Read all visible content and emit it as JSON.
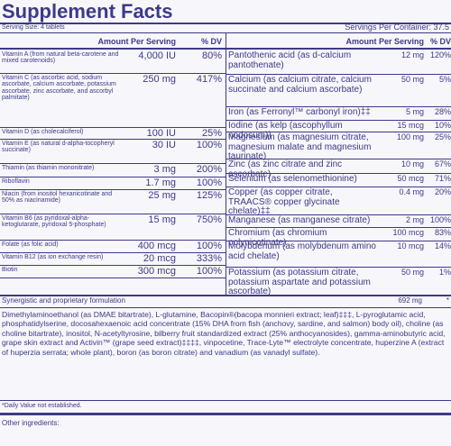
{
  "header": {
    "title": "Supplement Facts",
    "serving_size": "Serving Size: 4 tablets",
    "servings_per_container": "Servings Per Container: 37.5"
  },
  "left_table": {
    "columns": [
      "Amount Per Serving",
      "% DV"
    ],
    "rows": [
      [
        "Vitamin A (from natural beta-carotene and mixed carotenoids)",
        "4,000 IU",
        "80%"
      ],
      [
        "Vitamin C (as ascorbic acid, sodium ascorbate, calcium ascorbate, potassium ascorbate, zinc ascorbate, and ascorbyl palmitate)",
        "250 mg",
        "417%"
      ],
      [
        "Vitamin D (as cholecalciferol)",
        "100 IU",
        "25%"
      ],
      [
        "Vitamin E (as natural d-alpha-tocopheryl succinate)",
        "30 IU",
        "100%"
      ],
      [
        "Thiamin (as thiamin mononitrate)",
        "3 mg",
        "200%"
      ],
      [
        "Riboflavin",
        "1.7 mg",
        "100%"
      ],
      [
        "Niacin (from inositol hexanicotinate and 50% as niacinamide)",
        "25 mg",
        "125%"
      ],
      [
        "Vitamin B6 (as pyridoxal-alpha-ketoglutarate, pyridoxal 5-phosphate)",
        "15 mg",
        "750%"
      ],
      [
        "Folate (as folic acid)",
        "400 mcg",
        "100%"
      ],
      [
        "Vitamin B12 (as ion exchange resin)",
        "20 mcg",
        "333%"
      ],
      [
        "Biotin",
        "300 mcg",
        "100%"
      ]
    ]
  },
  "right_table": {
    "columns": [
      "Amount Per Serving",
      "% DV"
    ],
    "rows": [
      [
        "Pantothenic acid (as d-calcium pantothenate)",
        "12 mg",
        "120%"
      ],
      [
        "Calcium (as calcium citrate, calcium succinate and calcium ascorbate)",
        "50 mg",
        "5%"
      ],
      [
        "Iron (as Ferronyl™ carbonyl iron)‡‡",
        "5 mg",
        "28%"
      ],
      [
        "Iodine (as kelp (ascophyllum nodosum))",
        "15 mcg",
        "10%"
      ],
      [
        "Magnesium (as magnesium citrate, magnesium malate and magnesium taurinate)",
        "100 mg",
        "25%"
      ],
      [
        "Zinc (as zinc citrate and zinc ascorbate)",
        "10 mg",
        "67%"
      ],
      [
        "Selenium (as selenomethionine)",
        "50 mcg",
        "71%"
      ],
      [
        "Copper (as copper citrate, TRAACS® copper glycinate chelate)‡‡",
        "0.4 mg",
        "20%"
      ],
      [
        "Manganese (as manganese citrate)",
        "2 mg",
        "100%"
      ],
      [
        "Chromium (as chromium polynicotinate)",
        "100 mcg",
        "83%"
      ],
      [
        "Molybdenum (as molybdenum amino acid chelate)",
        "10 mcg",
        "14%"
      ],
      [
        "Potassium (as potassium citrate, potassium aspartate and potassium ascorbate)",
        "50 mg",
        "1%"
      ]
    ]
  },
  "proprietary": {
    "name": "Synergistic and proprietary formulation",
    "amount": "692 mg",
    "dv": "*",
    "ingredients": "Dimethylaminoethanol (as DMAE bitartrate), L-glutamine, Bacopin®(bacopa monnieri extract; leaf)‡‡‡, L-pyroglutamic acid, phosphatidylserine, docosahexaenoic acid concentrate (15% DHA from fish (anchovy, sardine, and salmon) body oil), choline (as choline bitartrate), inositol, N-acetyltyrosine, bilberry fruit standardized extract (25% anthocyanosides), gamma-aminobutyric acid, grape skin extract and Activin™ (grape seed extract)‡‡‡‡, vinpocetine, Trace-Lyte™ electrolyte concentrate, huperzine A (extract of huperzia serrata; whole plant), boron (as boron citrate) and vanadium (as vanadyl sulfate)."
  },
  "footnote": "*Daily Value not established.",
  "other_ingredients": "Other ingredients:"
}
